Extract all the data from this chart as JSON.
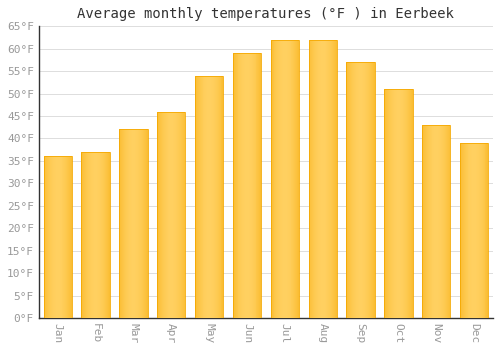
{
  "title": "Average monthly temperatures (°F ) in Eerbeek",
  "months": [
    "Jan",
    "Feb",
    "Mar",
    "Apr",
    "May",
    "Jun",
    "Jul",
    "Aug",
    "Sep",
    "Oct",
    "Nov",
    "Dec"
  ],
  "values": [
    36,
    37,
    42,
    46,
    54,
    59,
    62,
    62,
    57,
    51,
    43,
    39
  ],
  "bar_color_center": "#FFD060",
  "bar_color_edge": "#F5A800",
  "background_color": "#FFFFFF",
  "plot_bg_color": "#FFFFFF",
  "grid_color": "#DDDDDD",
  "ytick_step": 5,
  "ymin": 0,
  "ymax": 65,
  "title_fontsize": 10,
  "tick_fontsize": 8,
  "tick_color": "#999999",
  "axis_color": "#333333"
}
